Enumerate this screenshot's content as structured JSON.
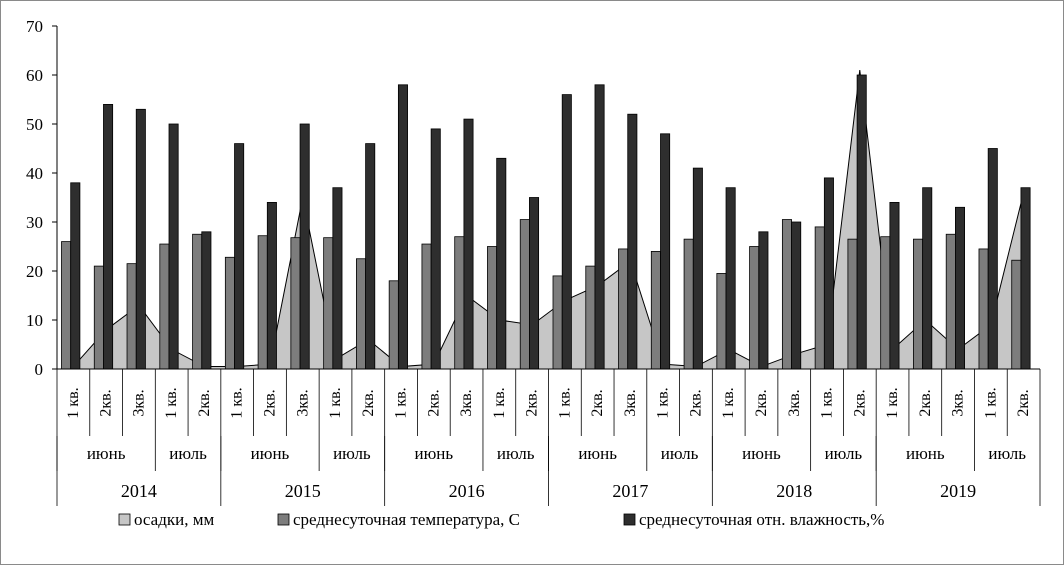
{
  "chart_data": {
    "type": "bar+area",
    "ylim": [
      0,
      70
    ],
    "yticks": [
      "0",
      "10",
      "20",
      "30",
      "40",
      "50",
      "60",
      "70"
    ],
    "grid": false,
    "legend_position": "bottom",
    "years": [
      "2014",
      "2015",
      "2016",
      "2017",
      "2018",
      "2019"
    ],
    "groups": [
      {
        "label": "июнь",
        "categories": [
          "1 кв.",
          "2кв.",
          "3кв."
        ]
      },
      {
        "label": "июль",
        "categories": [
          "1 кв.",
          "2кв."
        ]
      }
    ],
    "categories": [
      "1 кв.",
      "2кв.",
      "3кв.",
      "1 кв.",
      "2кв.",
      "1 кв.",
      "2кв.",
      "3кв.",
      "1 кв.",
      "2кв.",
      "1 кв.",
      "2кв.",
      "3кв.",
      "1 кв.",
      "2кв.",
      "1 кв.",
      "2кв.",
      "3кв.",
      "1 кв.",
      "2кв.",
      "1 кв.",
      "2кв.",
      "3кв.",
      "1 кв.",
      "2кв.",
      "1 кв.",
      "2кв.",
      "3кв.",
      "1 кв.",
      "2кв."
    ],
    "series": [
      {
        "name": "осадки, мм",
        "type": "area",
        "color": "#c6c6c6",
        "values": [
          0.5,
          8,
          13,
          4,
          0.5,
          0.5,
          1,
          35,
          2,
          6,
          0.5,
          1,
          15,
          10,
          9,
          14,
          17,
          22,
          1,
          0.5,
          4,
          0.5,
          3,
          5,
          61,
          4,
          10,
          4,
          9,
          36
        ]
      },
      {
        "name": "среднесуточная температура, С",
        "type": "bar",
        "color": "#7d7d7d",
        "values": [
          26,
          21,
          21.5,
          25.5,
          27.5,
          22.8,
          27.2,
          26.8,
          26.8,
          22.5,
          18,
          25.5,
          27,
          25,
          30.5,
          19,
          21,
          24.5,
          24,
          26.5,
          19.5,
          25,
          30.5,
          29,
          26.5,
          27,
          26.5,
          27.5,
          24.5,
          22.2
        ]
      },
      {
        "name": "среднесуточная отн. влажность,%",
        "type": "bar",
        "color": "#2e2e2e",
        "values": [
          38,
          54,
          53,
          50,
          28,
          46,
          34,
          50,
          37,
          46,
          58,
          49,
          51,
          43,
          35,
          56,
          58,
          52,
          48,
          41,
          37,
          28,
          30,
          39,
          60,
          34,
          37,
          33,
          45,
          37
        ]
      }
    ]
  }
}
